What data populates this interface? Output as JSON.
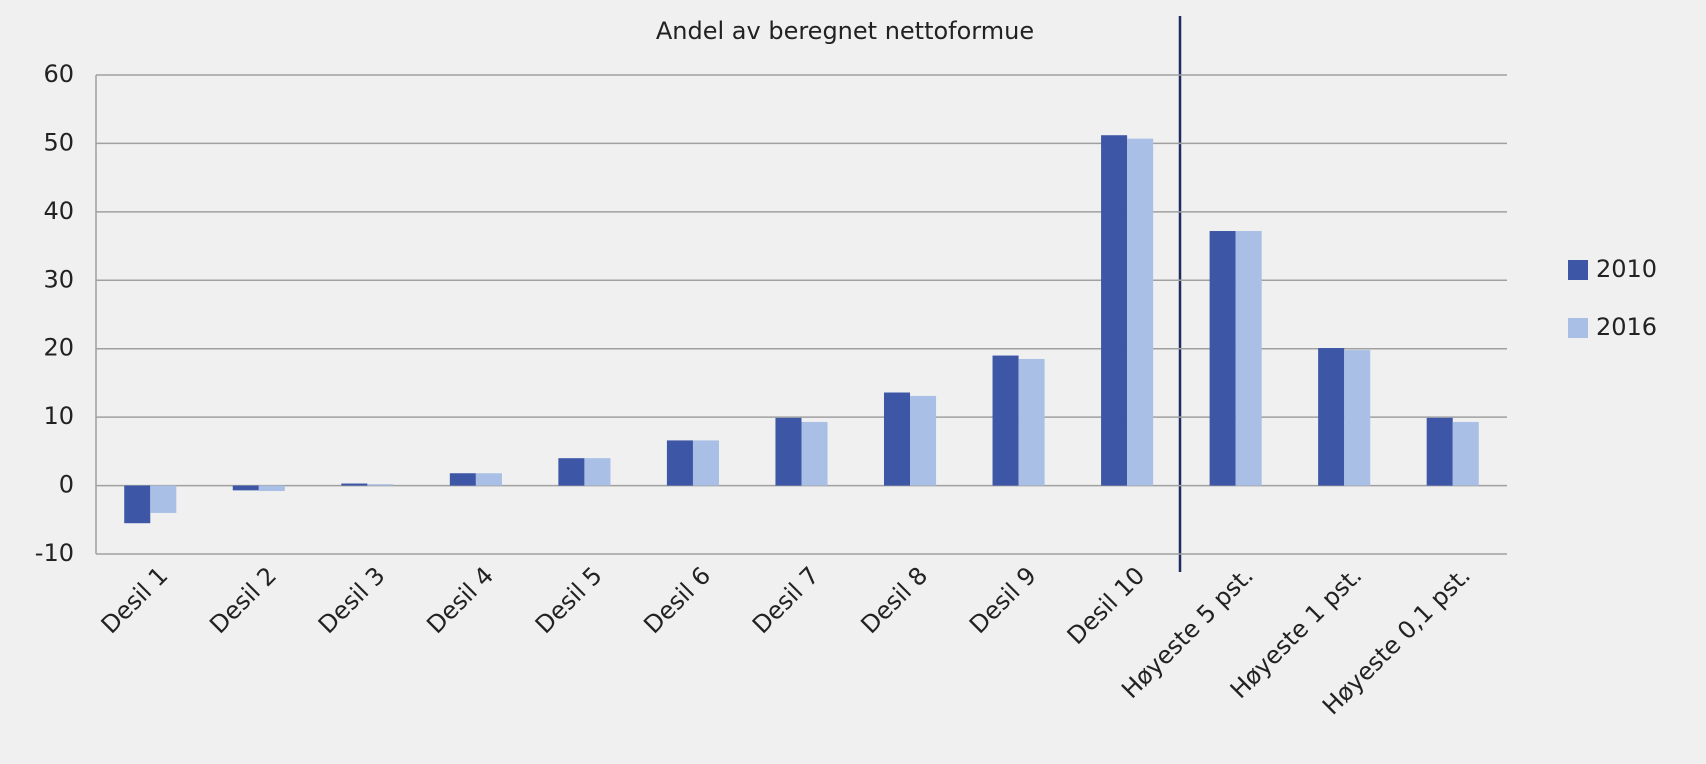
{
  "chart_data": {
    "type": "bar",
    "title": "Andel av beregnet nettoformue",
    "categories": [
      "Desil 1",
      "Desil 2",
      "Desil 3",
      "Desil 4",
      "Desil 5",
      "Desil 6",
      "Desil 7",
      "Desil 8",
      "Desil 9",
      "Desil 10",
      "Høyeste 5 pst.",
      "Høyeste 1 pst.",
      "Høyeste 0,1 pst."
    ],
    "series": [
      {
        "name": "2010",
        "color": "#3d56a6",
        "values": [
          -5.5,
          -0.7,
          0.3,
          1.8,
          4,
          6.6,
          9.9,
          13.6,
          19,
          51.2,
          37.2,
          20.1,
          9.9
        ]
      },
      {
        "name": "2016",
        "color": "#a9bfe5",
        "values": [
          -4,
          -0.8,
          0.2,
          1.8,
          4,
          6.6,
          9.3,
          13.1,
          18.5,
          50.7,
          37.2,
          19.8,
          9.3
        ]
      }
    ],
    "ylim": [
      -10,
      60
    ],
    "yticks": [
      -10,
      0,
      10,
      20,
      30,
      40,
      50,
      60
    ],
    "grid": true,
    "legend": "right"
  }
}
